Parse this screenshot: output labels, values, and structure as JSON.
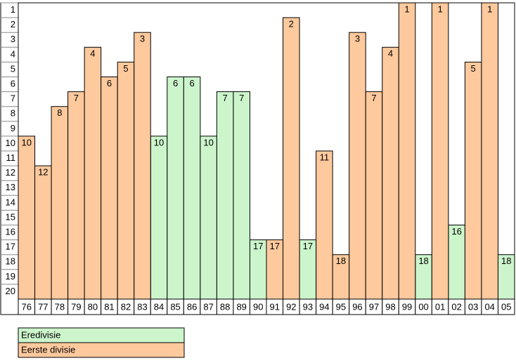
{
  "chart_data": {
    "type": "bar",
    "categories": [
      "76",
      "77",
      "78",
      "79",
      "80",
      "81",
      "82",
      "83",
      "84",
      "85",
      "86",
      "87",
      "88",
      "89",
      "90",
      "91",
      "92",
      "93",
      "94",
      "95",
      "96",
      "97",
      "98",
      "99",
      "00",
      "01",
      "02",
      "03",
      "04",
      "05"
    ],
    "series": [
      {
        "name": "Eredivisie",
        "color": "#ccf5cc",
        "values": [
          null,
          null,
          null,
          null,
          null,
          null,
          null,
          null,
          10,
          6,
          6,
          10,
          7,
          7,
          17,
          null,
          null,
          17,
          null,
          null,
          null,
          null,
          null,
          null,
          18,
          null,
          16,
          null,
          null,
          18
        ]
      },
      {
        "name": "Eerste divisie",
        "color": "#fdc99d",
        "values": [
          10,
          12,
          8,
          7,
          4,
          6,
          5,
          3,
          null,
          null,
          null,
          null,
          null,
          null,
          null,
          17,
          2,
          null,
          11,
          18,
          3,
          7,
          4,
          1,
          null,
          1,
          null,
          5,
          1,
          null
        ]
      }
    ],
    "ylim": [
      1,
      21
    ],
    "yticks": [
      1,
      2,
      3,
      4,
      5,
      6,
      7,
      8,
      9,
      10,
      11,
      12,
      13,
      14,
      15,
      16,
      17,
      18,
      19,
      20
    ]
  }
}
